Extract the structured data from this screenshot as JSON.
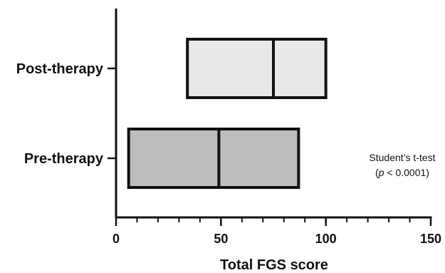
{
  "chart_data": {
    "type": "box",
    "orientation": "horizontal",
    "categories": [
      "Post-therapy",
      "Pre-therapy"
    ],
    "series": [
      {
        "category": "Post-therapy",
        "min": 34,
        "median": 75,
        "max": 100,
        "fill": "#e8e8e8"
      },
      {
        "category": "Pre-therapy",
        "min": 6,
        "median": 49,
        "max": 87,
        "fill": "#bdbdbd"
      }
    ],
    "x_axis": {
      "label": "Total FGS score",
      "range": [
        0,
        150
      ],
      "major_ticks": [
        0,
        50,
        100,
        150
      ],
      "minor_tick_step": 10
    },
    "grid": false,
    "annotation": {
      "line1": "Student’s t-test",
      "line2_open": "(",
      "line2_p": "p",
      "line2_rest": " < 0.0001)"
    }
  }
}
